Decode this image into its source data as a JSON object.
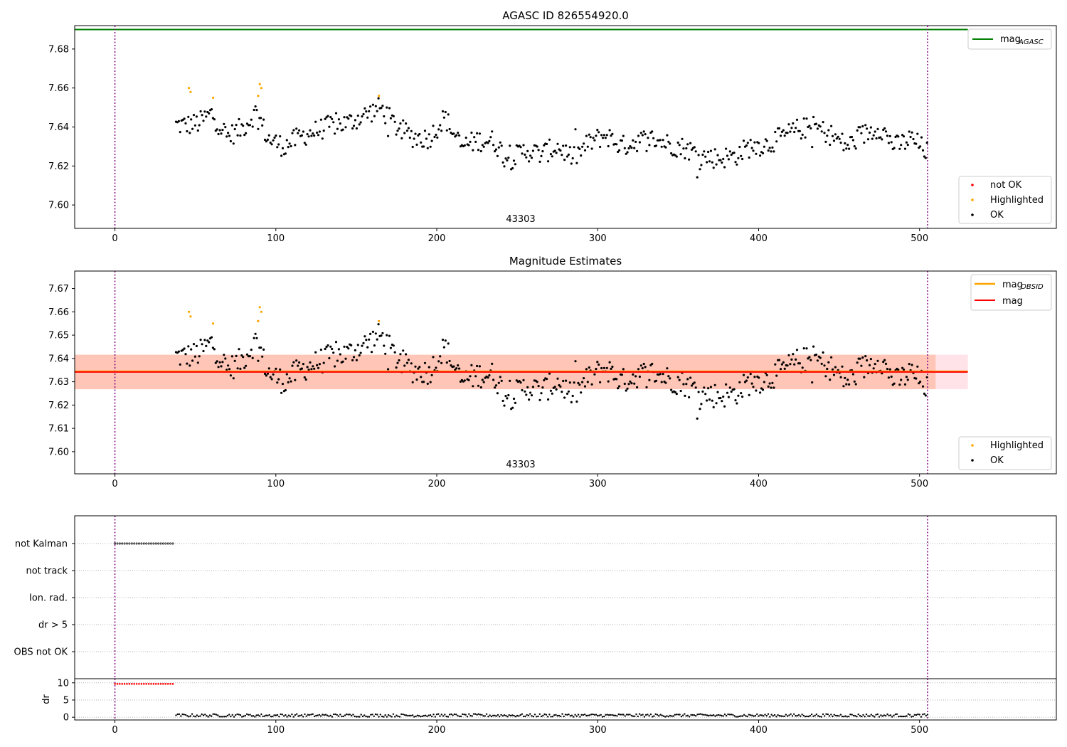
{
  "figure": {
    "obsid_label": "43303",
    "colors": {
      "ok": "#000000",
      "highlighted": "#ffa500",
      "not_ok": "#ff0000",
      "agasc_line": "#008000",
      "obsid_line": "#ffa500",
      "mag_line": "#ff0000",
      "band_pink": "#ffc0cb",
      "band_orange": "#ffa07a",
      "boundary": "#800080",
      "grid": "#b0b0b0"
    }
  },
  "chart_data": [
    {
      "type": "scatter",
      "title": "AGASC ID 826554920.0",
      "xlim": [
        -25,
        585
      ],
      "ylim": [
        7.588,
        7.692
      ],
      "xticks": [
        0,
        100,
        200,
        300,
        400,
        500
      ],
      "yticks": [
        7.6,
        7.62,
        7.64,
        7.66,
        7.68
      ],
      "ytick_labels": [
        "7.60",
        "7.62",
        "7.64",
        "7.66",
        "7.68"
      ],
      "vlines": [
        0,
        505
      ],
      "hlines": [
        {
          "name": "mag_AGASC",
          "y": 7.69,
          "xmin": -25,
          "xmax": 530
        }
      ],
      "annotation": "43303",
      "legends": [
        {
          "placement": "top-right",
          "entries": [
            {
              "label": "mag",
              "sub": "AGASC",
              "kind": "line",
              "color_key": "agasc_line"
            }
          ]
        },
        {
          "placement": "bottom-right",
          "entries": [
            {
              "label": "not OK",
              "kind": "dot",
              "color_key": "not_ok"
            },
            {
              "label": "Highlighted",
              "kind": "dot",
              "color_key": "highlighted"
            },
            {
              "label": "OK",
              "kind": "dot",
              "color_key": "ok"
            }
          ]
        }
      ],
      "series": [
        {
          "name": "Highlighted",
          "points": [
            [
              46,
              7.66
            ],
            [
              47,
              7.658
            ],
            [
              61,
              7.655
            ],
            [
              89,
              7.656
            ],
            [
              90,
              7.662
            ],
            [
              91,
              7.66
            ],
            [
              164,
              7.656
            ]
          ]
        },
        {
          "name": "OK",
          "anchors": [
            [
              38,
              7.641
            ],
            [
              45,
              7.641
            ],
            [
              52,
              7.642
            ],
            [
              60,
              7.647
            ],
            [
              70,
              7.635
            ],
            [
              80,
              7.64
            ],
            [
              88,
              7.648
            ],
            [
              95,
              7.634
            ],
            [
              105,
              7.63
            ],
            [
              115,
              7.635
            ],
            [
              125,
              7.638
            ],
            [
              135,
              7.641
            ],
            [
              145,
              7.642
            ],
            [
              155,
              7.646
            ],
            [
              165,
              7.65
            ],
            [
              175,
              7.64
            ],
            [
              185,
              7.635
            ],
            [
              195,
              7.634
            ],
            [
              205,
              7.645
            ],
            [
              215,
              7.63
            ],
            [
              225,
              7.633
            ],
            [
              235,
              7.633
            ],
            [
              245,
              7.623
            ],
            [
              255,
              7.628
            ],
            [
              265,
              7.626
            ],
            [
              275,
              7.63
            ],
            [
              285,
              7.624
            ],
            [
              295,
              7.632
            ],
            [
              305,
              7.636
            ],
            [
              315,
              7.63
            ],
            [
              325,
              7.633
            ],
            [
              335,
              7.634
            ],
            [
              345,
              7.631
            ],
            [
              355,
              7.629
            ],
            [
              365,
              7.625
            ],
            [
              375,
              7.624
            ],
            [
              385,
              7.625
            ],
            [
              395,
              7.63
            ],
            [
              405,
              7.631
            ],
            [
              415,
              7.635
            ],
            [
              425,
              7.639
            ],
            [
              435,
              7.64
            ],
            [
              445,
              7.636
            ],
            [
              455,
              7.63
            ],
            [
              465,
              7.636
            ],
            [
              475,
              7.64
            ],
            [
              485,
              7.63
            ],
            [
              495,
              7.634
            ],
            [
              505,
              7.627
            ]
          ]
        }
      ]
    },
    {
      "type": "scatter",
      "title": "Magnitude Estimates",
      "xlim": [
        -25,
        585
      ],
      "ylim": [
        7.5905,
        7.6775
      ],
      "xticks": [
        0,
        100,
        200,
        300,
        400,
        500
      ],
      "yticks": [
        7.6,
        7.61,
        7.62,
        7.63,
        7.64,
        7.65,
        7.66,
        7.67
      ],
      "ytick_labels": [
        "7.60",
        "7.61",
        "7.62",
        "7.63",
        "7.64",
        "7.65",
        "7.66",
        "7.67"
      ],
      "vlines": [
        0,
        505
      ],
      "hlines": [
        {
          "name": "mag_OBSID",
          "y": 7.6342,
          "xmin": -25,
          "xmax": 530
        },
        {
          "name": "mag",
          "y": 7.6342,
          "xmin": -25,
          "xmax": 530
        }
      ],
      "bands": [
        {
          "color_key": "band_pink",
          "ymin": 7.6268,
          "ymax": 7.6416,
          "xmin": -25,
          "xmax": 530
        },
        {
          "color_key": "band_orange",
          "ymin": 7.6268,
          "ymax": 7.6416,
          "xmin": -25,
          "xmax": 510
        }
      ],
      "annotation": "43303",
      "legends": [
        {
          "placement": "top-right",
          "entries": [
            {
              "label": "mag",
              "sub": "OBSID",
              "kind": "line",
              "color_key": "obsid_line"
            },
            {
              "label": "mag",
              "kind": "line",
              "color_key": "mag_line"
            }
          ]
        },
        {
          "placement": "bottom-right",
          "entries": [
            {
              "label": "Highlighted",
              "kind": "dot",
              "color_key": "highlighted"
            },
            {
              "label": "OK",
              "kind": "dot",
              "color_key": "ok"
            }
          ]
        }
      ],
      "series_ref": 0
    },
    {
      "type": "scatter",
      "title": "",
      "xlim": [
        -25,
        585
      ],
      "categories": [
        "not Kalman",
        "not track",
        "Ion. rad.",
        "dr > 5",
        "OBS not OK"
      ],
      "vlines": [
        0,
        505
      ],
      "flag_ranges": [
        {
          "category": "not Kalman",
          "x": [
            0,
            37
          ],
          "step": 1.5
        }
      ]
    },
    {
      "type": "scatter",
      "title": "",
      "ylabel": "dr",
      "xlim": [
        -25,
        585
      ],
      "ylim": [
        -0.8,
        11.2
      ],
      "xticks": [
        0,
        100,
        200,
        300,
        400,
        500
      ],
      "yticks": [
        0,
        5,
        10
      ],
      "vlines": [
        0,
        505
      ],
      "series": [
        {
          "name": "dr high",
          "color_key": "not_ok",
          "x": [
            0,
            37
          ],
          "y": 9.7,
          "step": 1.5
        },
        {
          "name": "dr",
          "color_key": "ok",
          "x": [
            38,
            505
          ],
          "y_range": [
            0.1,
            1.3
          ]
        }
      ]
    }
  ]
}
